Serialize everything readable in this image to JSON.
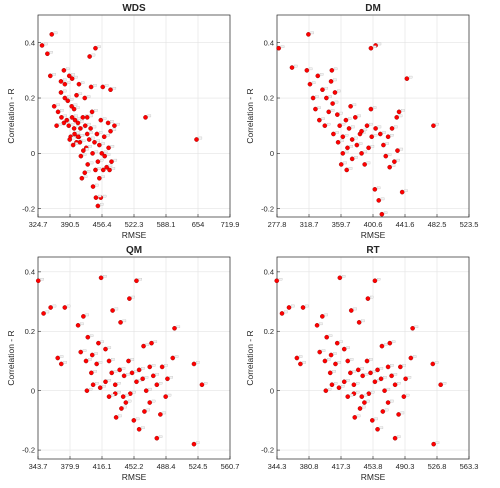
{
  "colors": {
    "marker": "#ff0000",
    "marker_edge": "#8b0000",
    "axis": "#262626",
    "grid": "#e3e3e3"
  },
  "chart_data": [
    {
      "type": "scatter",
      "title": "WDS",
      "xlabel": "RMSE",
      "ylabel": "Correlation - R",
      "xticks": [
        "324.7",
        "390.5",
        "456.4",
        "522.3",
        "588.1",
        "654",
        "719.9"
      ],
      "yticks": [
        "-0.2",
        "0",
        "0.2",
        "0.4"
      ],
      "xlim": [
        324.7,
        719.9
      ],
      "ylim": [
        -0.23,
        0.5
      ],
      "grid": true,
      "points": [
        [
          333,
          0.39
        ],
        [
          344,
          0.36
        ],
        [
          353,
          0.43
        ],
        [
          350,
          0.28
        ],
        [
          372,
          0.26
        ],
        [
          378,
          0.3
        ],
        [
          389,
          0.28
        ],
        [
          380,
          0.25
        ],
        [
          372,
          0.22
        ],
        [
          358,
          0.17
        ],
        [
          366,
          0.15
        ],
        [
          373,
          0.13
        ],
        [
          378,
          0.11
        ],
        [
          363,
          0.1
        ],
        [
          386,
          0.19
        ],
        [
          394,
          0.17
        ],
        [
          399,
          0.16
        ],
        [
          404,
          0.21
        ],
        [
          399,
          0.09
        ],
        [
          392,
          0.06
        ],
        [
          384,
          0.12
        ],
        [
          388,
          0.1
        ],
        [
          395,
          0.13
        ],
        [
          401,
          0.12
        ],
        [
          407,
          0.11
        ],
        [
          412,
          0.09
        ],
        [
          409,
          0.06
        ],
        [
          404,
          0.04
        ],
        [
          397,
          0.03
        ],
        [
          390,
          0.05
        ],
        [
          417,
          0.13
        ],
        [
          422,
          0.1
        ],
        [
          426,
          0.07
        ],
        [
          433,
          0.09
        ],
        [
          430,
          0.05
        ],
        [
          424,
          0.02
        ],
        [
          418,
          0.01
        ],
        [
          413,
          -0.01
        ],
        [
          427,
          -0.04
        ],
        [
          421,
          -0.07
        ],
        [
          415,
          -0.09
        ],
        [
          437,
          0.0
        ],
        [
          441,
          0.04
        ],
        [
          446,
          0.07
        ],
        [
          451,
          0.03
        ],
        [
          456,
          0.0
        ],
        [
          448,
          -0.03
        ],
        [
          443,
          -0.06
        ],
        [
          438,
          -0.12
        ],
        [
          459,
          -0.06
        ],
        [
          466,
          -0.05
        ],
        [
          472,
          -0.06
        ],
        [
          461,
          0.06
        ],
        [
          469,
          0.11
        ],
        [
          474,
          0.08
        ],
        [
          482,
          0.1
        ],
        [
          454,
          -0.16
        ],
        [
          448,
          -0.19
        ],
        [
          444,
          -0.16
        ],
        [
          451,
          -0.09
        ],
        [
          431,
          0.35
        ],
        [
          443,
          0.38
        ],
        [
          458,
          0.24
        ],
        [
          474,
          0.23
        ],
        [
          407,
          0.06
        ],
        [
          426,
          0.13
        ],
        [
          436,
          0.15
        ],
        [
          434,
          0.24
        ],
        [
          546,
          0.13
        ],
        [
          651,
          0.05
        ],
        [
          421,
          0.2
        ],
        [
          409,
          0.25
        ],
        [
          395,
          0.27
        ],
        [
          380,
          0.2
        ],
        [
          400,
          0.07
        ],
        [
          411,
          0.04
        ],
        [
          454,
          0.12
        ],
        [
          462,
          -0.01
        ],
        [
          470,
          0.02
        ],
        [
          476,
          -0.03
        ]
      ]
    },
    {
      "type": "scatter",
      "title": "DM",
      "xlabel": "RMSE",
      "ylabel": "Correlation - R",
      "xticks": [
        "277.8",
        "318.7",
        "359.7",
        "400.6",
        "441.6",
        "482.5",
        "523.5"
      ],
      "yticks": [
        "-0.2",
        "0",
        "0.2",
        "0.4"
      ],
      "xlim": [
        277.8,
        523.5
      ],
      "ylim": [
        -0.23,
        0.5
      ],
      "grid": true,
      "points": [
        [
          280,
          0.38
        ],
        [
          297,
          0.31
        ],
        [
          318,
          0.43
        ],
        [
          316,
          0.3
        ],
        [
          320,
          0.25
        ],
        [
          324,
          0.2
        ],
        [
          330,
          0.28
        ],
        [
          336,
          0.23
        ],
        [
          327,
          0.16
        ],
        [
          332,
          0.12
        ],
        [
          339,
          0.1
        ],
        [
          344,
          0.15
        ],
        [
          347,
          0.26
        ],
        [
          352,
          0.22
        ],
        [
          349,
          0.18
        ],
        [
          355,
          0.14
        ],
        [
          358,
          0.1
        ],
        [
          362,
          0.06
        ],
        [
          356,
          0.04
        ],
        [
          350,
          0.07
        ],
        [
          366,
          0.12
        ],
        [
          370,
          0.09
        ],
        [
          374,
          0.05
        ],
        [
          368,
          0.02
        ],
        [
          362,
          0.0
        ],
        [
          360,
          -0.04
        ],
        [
          367,
          -0.06
        ],
        [
          374,
          -0.02
        ],
        [
          380,
          0.03
        ],
        [
          384,
          0.07
        ],
        [
          378,
          0.13
        ],
        [
          372,
          0.17
        ],
        [
          386,
          0.0
        ],
        [
          390,
          -0.04
        ],
        [
          395,
          0.02
        ],
        [
          399,
          0.06
        ],
        [
          404,
          0.09
        ],
        [
          410,
          0.07
        ],
        [
          414,
          0.03
        ],
        [
          420,
          0.06
        ],
        [
          417,
          -0.01
        ],
        [
          422,
          -0.05
        ],
        [
          428,
          -0.03
        ],
        [
          432,
          0.01
        ],
        [
          425,
          0.09
        ],
        [
          431,
          0.13
        ],
        [
          404,
          0.39
        ],
        [
          398,
          0.38
        ],
        [
          403,
          -0.13
        ],
        [
          408,
          -0.17
        ],
        [
          412,
          -0.22
        ],
        [
          434,
          0.15
        ],
        [
          444,
          0.27
        ],
        [
          478,
          0.1
        ],
        [
          438,
          -0.14
        ],
        [
          393,
          0.1
        ],
        [
          386,
          0.08
        ],
        [
          398,
          0.16
        ],
        [
          341,
          0.2
        ],
        [
          348,
          0.3
        ]
      ]
    },
    {
      "type": "scatter",
      "title": "QM",
      "xlabel": "RMSE",
      "ylabel": "Correlation - R",
      "xticks": [
        "343.7",
        "379.9",
        "416.1",
        "452.2",
        "488.4",
        "524.5",
        "560.7"
      ],
      "yticks": [
        "-0.2",
        "0",
        "0.2",
        "0.4"
      ],
      "xlim": [
        343.7,
        560.7
      ],
      "ylim": [
        -0.23,
        0.45
      ],
      "grid": true,
      "points": [
        [
          344,
          0.37
        ],
        [
          350,
          0.26
        ],
        [
          358,
          0.28
        ],
        [
          374,
          0.28
        ],
        [
          370,
          0.09
        ],
        [
          366,
          0.11
        ],
        [
          389,
          0.22
        ],
        [
          395,
          0.25
        ],
        [
          400,
          0.18
        ],
        [
          392,
          0.13
        ],
        [
          398,
          0.1
        ],
        [
          404,
          0.06
        ],
        [
          410,
          0.09
        ],
        [
          415,
          0.38
        ],
        [
          420,
          0.14
        ],
        [
          424,
          0.1
        ],
        [
          427,
          0.06
        ],
        [
          420,
          0.03
        ],
        [
          414,
          0.01
        ],
        [
          431,
          0.02
        ],
        [
          436,
          0.07
        ],
        [
          441,
          0.05
        ],
        [
          446,
          0.1
        ],
        [
          450,
          0.06
        ],
        [
          455,
          0.03
        ],
        [
          448,
          -0.01
        ],
        [
          443,
          -0.04
        ],
        [
          438,
          -0.06
        ],
        [
          432,
          -0.09
        ],
        [
          458,
          0.07
        ],
        [
          462,
          0.04
        ],
        [
          466,
          0.0
        ],
        [
          470,
          0.08
        ],
        [
          474,
          0.05
        ],
        [
          478,
          0.02
        ],
        [
          470,
          -0.04
        ],
        [
          464,
          -0.07
        ],
        [
          458,
          -0.13
        ],
        [
          452,
          -0.1
        ],
        [
          484,
          0.08
        ],
        [
          490,
          0.04
        ],
        [
          488,
          -0.02
        ],
        [
          482,
          -0.08
        ],
        [
          496,
          0.11
        ],
        [
          498,
          0.21
        ],
        [
          478,
          -0.16
        ],
        [
          520,
          -0.18
        ],
        [
          520,
          0.09
        ],
        [
          529,
          0.02
        ],
        [
          437,
          0.23
        ],
        [
          428,
          0.27
        ],
        [
          447,
          0.31
        ],
        [
          455,
          0.37
        ],
        [
          440,
          -0.02
        ],
        [
          431,
          -0.01
        ],
        [
          424,
          -0.02
        ],
        [
          463,
          0.15
        ],
        [
          472,
          0.16
        ],
        [
          412,
          0.16
        ],
        [
          405,
          0.12
        ],
        [
          406,
          0.02
        ],
        [
          399,
          0.0
        ]
      ]
    },
    {
      "type": "scatter",
      "title": "RT",
      "xlabel": "RMSE",
      "ylabel": "Correlation - R",
      "xticks": [
        "344.3",
        "380.8",
        "417.3",
        "453.8",
        "490.3",
        "526.8",
        "563.3"
      ],
      "yticks": [
        "-0.2",
        "0",
        "0.2",
        "0.4"
      ],
      "xlim": [
        344.3,
        563.3
      ],
      "ylim": [
        -0.23,
        0.45
      ],
      "grid": true,
      "points": [
        [
          344,
          0.37
        ],
        [
          350,
          0.26
        ],
        [
          358,
          0.28
        ],
        [
          374,
          0.28
        ],
        [
          371,
          0.09
        ],
        [
          367,
          0.11
        ],
        [
          390,
          0.22
        ],
        [
          396,
          0.25
        ],
        [
          401,
          0.18
        ],
        [
          393,
          0.13
        ],
        [
          399,
          0.1
        ],
        [
          405,
          0.06
        ],
        [
          411,
          0.09
        ],
        [
          416,
          0.38
        ],
        [
          421,
          0.14
        ],
        [
          425,
          0.1
        ],
        [
          428,
          0.06
        ],
        [
          421,
          0.03
        ],
        [
          415,
          0.01
        ],
        [
          432,
          0.02
        ],
        [
          437,
          0.07
        ],
        [
          442,
          0.05
        ],
        [
          447,
          0.1
        ],
        [
          451,
          0.06
        ],
        [
          456,
          0.03
        ],
        [
          449,
          -0.01
        ],
        [
          444,
          -0.04
        ],
        [
          439,
          -0.06
        ],
        [
          433,
          -0.09
        ],
        [
          459,
          0.07
        ],
        [
          463,
          0.04
        ],
        [
          467,
          0.0
        ],
        [
          471,
          0.08
        ],
        [
          475,
          0.05
        ],
        [
          479,
          0.02
        ],
        [
          471,
          -0.04
        ],
        [
          465,
          -0.07
        ],
        [
          459,
          -0.13
        ],
        [
          453,
          -0.1
        ],
        [
          485,
          0.08
        ],
        [
          491,
          0.04
        ],
        [
          489,
          -0.02
        ],
        [
          483,
          -0.08
        ],
        [
          497,
          0.11
        ],
        [
          499,
          0.21
        ],
        [
          479,
          -0.16
        ],
        [
          523,
          -0.18
        ],
        [
          522,
          0.09
        ],
        [
          531,
          0.02
        ],
        [
          438,
          0.23
        ],
        [
          429,
          0.27
        ],
        [
          448,
          0.31
        ],
        [
          456,
          0.37
        ],
        [
          441,
          -0.02
        ],
        [
          432,
          -0.01
        ],
        [
          425,
          -0.02
        ],
        [
          464,
          0.15
        ],
        [
          473,
          0.16
        ],
        [
          413,
          0.16
        ],
        [
          406,
          0.12
        ],
        [
          407,
          0.02
        ],
        [
          400,
          0.0
        ]
      ]
    }
  ]
}
